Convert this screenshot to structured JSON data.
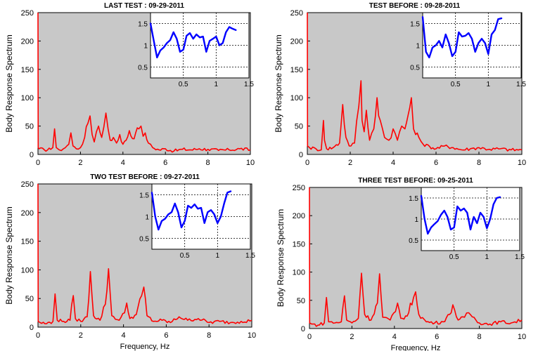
{
  "panels": [
    {
      "title": "LAST TEST : 09-29-2011",
      "ylabel": "Body Response Spectrum",
      "xlabel": "",
      "xlim": [
        0,
        10
      ],
      "ylim": [
        0,
        250
      ],
      "xticks": [
        "0",
        "2",
        "4",
        "6",
        "8",
        "10"
      ],
      "yticks": [
        "0",
        "50",
        "100",
        "150",
        "200",
        "250"
      ],
      "inset": {
        "xticks": [
          "0.5",
          "1",
          "1.5"
        ],
        "yticks": [
          "0.5",
          "1",
          "1.5"
        ],
        "xlim": [
          0,
          1.5
        ],
        "ylim": [
          0.25,
          1.75
        ]
      }
    },
    {
      "title": "TEST BEFORE : 09-28-2011",
      "ylabel": "Body Response Spectrum",
      "xlabel": "",
      "xlim": [
        0,
        10
      ],
      "ylim": [
        0,
        250
      ],
      "xticks": [
        "0",
        "2",
        "4",
        "6",
        "8",
        "10"
      ],
      "yticks": [
        "0",
        "50",
        "100",
        "150",
        "200",
        "250"
      ],
      "inset": {
        "xticks": [
          "0.5",
          "1",
          "1.5"
        ],
        "yticks": [
          "0.5",
          "1",
          "1.5"
        ],
        "xlim": [
          0,
          1.5
        ],
        "ylim": [
          0.25,
          1.75
        ]
      }
    },
    {
      "title": "TWO TEST BEFORE : 09-27-2011",
      "ylabel": "Body Response Spectrum",
      "xlabel": "Frequency, Hz",
      "xlim": [
        0,
        10
      ],
      "ylim": [
        0,
        250
      ],
      "xticks": [
        "0",
        "2",
        "4",
        "6",
        "8",
        "10"
      ],
      "yticks": [
        "0",
        "50",
        "100",
        "150",
        "200",
        "250"
      ],
      "inset": {
        "xticks": [
          "0.5",
          "1",
          "1.5"
        ],
        "yticks": [
          "0.5",
          "1",
          "1.5"
        ],
        "xlim": [
          0,
          1.5
        ],
        "ylim": [
          0.25,
          1.75
        ]
      }
    },
    {
      "title": "THREE TEST BEFORE:   09-25-2011",
      "ylabel": "Body Response Spectrum",
      "xlabel": "Frequency, Hz",
      "xlim": [
        0,
        10
      ],
      "ylim": [
        0,
        250
      ],
      "xticks": [
        "0",
        "2",
        "4",
        "6",
        "8",
        "10"
      ],
      "yticks": [
        "0",
        "50",
        "100",
        "150",
        "200",
        "250"
      ],
      "inset": {
        "xticks": [
          "0.5",
          "1",
          "1.5"
        ],
        "yticks": [
          "0.5",
          "1",
          "1.5"
        ],
        "xlim": [
          0,
          1.5
        ],
        "ylim": [
          0.25,
          1.75
        ]
      }
    }
  ],
  "colors": {
    "spectrum": "#ff0000",
    "inset_line": "#0000ff",
    "axes_bg": "#c8c8c8",
    "inset_bg": "#ffffff"
  },
  "chart_data": [
    {
      "type": "line",
      "title": "LAST TEST : 09-29-2011",
      "ylabel": "Body Response Spectrum",
      "xlim": [
        0,
        10
      ],
      "ylim": [
        0,
        250
      ],
      "series": [
        {
          "x": [
            0,
            0.01,
            0.05,
            0.3,
            0.6,
            0.7,
            0.78,
            0.86,
            1.0,
            1.2,
            1.45,
            1.55,
            1.65,
            1.8,
            2.0,
            2.2,
            2.35,
            2.45,
            2.55,
            2.65,
            2.75,
            2.85,
            3.0,
            3.1,
            3.2,
            3.3,
            3.4,
            3.55,
            3.7,
            3.85,
            4.0,
            4.15,
            4.3,
            4.45,
            4.6,
            4.75,
            4.85,
            4.95,
            5.05,
            5.2,
            5.4,
            5.7,
            6.0,
            6.4,
            6.8,
            7.2,
            7.6,
            8.0,
            8.5,
            9.0,
            9.5,
            10.0
          ],
          "y": [
            250,
            12,
            10,
            8,
            9,
            12,
            45,
            12,
            8,
            10,
            18,
            38,
            15,
            10,
            12,
            30,
            55,
            68,
            35,
            22,
            40,
            50,
            30,
            48,
            73,
            45,
            25,
            30,
            20,
            35,
            18,
            25,
            42,
            28,
            38,
            45,
            50,
            32,
            38,
            20,
            12,
            8,
            10,
            6,
            9,
            8,
            10,
            9,
            7,
            8,
            10,
            8
          ]
        }
      ],
      "inset": {
        "xlim": [
          0,
          1.5
        ],
        "ylim": [
          0.25,
          1.75
        ],
        "x": [
          0,
          0.05,
          0.1,
          0.15,
          0.2,
          0.25,
          0.3,
          0.35,
          0.4,
          0.45,
          0.5,
          0.55,
          0.6,
          0.65,
          0.7,
          0.75,
          0.8,
          0.85,
          0.9,
          0.95,
          1.0,
          1.05,
          1.1,
          1.15,
          1.2,
          1.25,
          1.3
        ],
        "y": [
          1.5,
          1.1,
          0.72,
          0.88,
          0.95,
          1.05,
          1.12,
          1.3,
          1.15,
          0.85,
          0.9,
          1.22,
          1.28,
          1.15,
          1.25,
          1.18,
          1.2,
          0.85,
          1.1,
          1.15,
          1.2,
          1.0,
          1.05,
          1.3,
          1.42,
          1.38,
          1.35
        ]
      }
    },
    {
      "type": "line",
      "title": "TEST BEFORE : 09-28-2011",
      "ylabel": "Body Response Spectrum",
      "xlim": [
        0,
        10
      ],
      "ylim": [
        0,
        250
      ],
      "series": [
        {
          "x": [
            0,
            0.01,
            0.1,
            0.4,
            0.65,
            0.75,
            0.8,
            0.9,
            1.2,
            1.5,
            1.65,
            1.8,
            1.95,
            2.2,
            2.4,
            2.5,
            2.55,
            2.65,
            2.75,
            2.9,
            3.1,
            3.25,
            3.4,
            3.6,
            3.8,
            4.0,
            4.2,
            4.4,
            4.55,
            4.7,
            4.85,
            4.95,
            5.05,
            5.2,
            5.4,
            5.7,
            6.0,
            6.4,
            6.8,
            7.2,
            7.6,
            8.0,
            8.5,
            9.0,
            9.5,
            10.0
          ],
          "y": [
            250,
            15,
            12,
            10,
            8,
            60,
            25,
            10,
            12,
            20,
            88,
            30,
            15,
            20,
            85,
            130,
            60,
            40,
            78,
            25,
            45,
            100,
            60,
            30,
            25,
            45,
            25,
            50,
            45,
            70,
            100,
            45,
            35,
            30,
            18,
            14,
            10,
            15,
            12,
            8,
            10,
            12,
            9,
            10,
            8,
            8
          ]
        }
      ],
      "inset": {
        "xlim": [
          0,
          1.5
        ],
        "ylim": [
          0.25,
          1.75
        ],
        "x": [
          0,
          0.05,
          0.1,
          0.15,
          0.2,
          0.25,
          0.3,
          0.35,
          0.4,
          0.45,
          0.5,
          0.55,
          0.6,
          0.65,
          0.7,
          0.75,
          0.8,
          0.85,
          0.9,
          0.95,
          1.0,
          1.05,
          1.1,
          1.15,
          1.2
        ],
        "y": [
          1.65,
          0.85,
          0.72,
          0.95,
          1.0,
          1.1,
          0.95,
          1.25,
          1.05,
          0.75,
          0.85,
          1.3,
          1.2,
          1.22,
          1.28,
          1.15,
          0.85,
          1.05,
          1.15,
          1.05,
          0.8,
          1.25,
          1.35,
          1.6,
          1.62
        ]
      }
    },
    {
      "type": "line",
      "title": "TWO TEST BEFORE : 09-27-2011",
      "ylabel": "Body Response Spectrum",
      "xlabel": "Frequency, Hz",
      "xlim": [
        0,
        10
      ],
      "ylim": [
        0,
        250
      ],
      "series": [
        {
          "x": [
            0,
            0.01,
            0.1,
            0.4,
            0.7,
            0.8,
            0.9,
            1.2,
            1.5,
            1.65,
            1.75,
            2.0,
            2.3,
            2.45,
            2.6,
            2.9,
            3.15,
            3.3,
            3.45,
            3.8,
            4.05,
            4.15,
            4.3,
            4.6,
            4.85,
            4.95,
            5.1,
            5.4,
            5.8,
            6.2,
            6.6,
            7.0,
            7.5,
            8.0,
            8.5,
            9.0,
            9.5,
            10.0
          ],
          "y": [
            250,
            10,
            8,
            6,
            10,
            58,
            12,
            10,
            12,
            55,
            15,
            10,
            18,
            97,
            20,
            12,
            40,
            102,
            20,
            12,
            25,
            42,
            15,
            22,
            55,
            70,
            20,
            10,
            12,
            8,
            18,
            12,
            15,
            8,
            10,
            8,
            10,
            12
          ]
        }
      ],
      "inset": {
        "xlim": [
          0,
          1.5
        ],
        "ylim": [
          0.25,
          1.75
        ],
        "x": [
          0,
          0.05,
          0.1,
          0.15,
          0.2,
          0.25,
          0.3,
          0.35,
          0.4,
          0.45,
          0.5,
          0.55,
          0.6,
          0.65,
          0.7,
          0.75,
          0.8,
          0.85,
          0.9,
          0.95,
          1.0,
          1.05,
          1.1,
          1.15,
          1.2
        ],
        "y": [
          1.55,
          1.0,
          0.7,
          0.9,
          0.95,
          1.05,
          1.1,
          1.3,
          1.1,
          0.75,
          0.9,
          1.25,
          1.2,
          1.28,
          1.18,
          1.2,
          0.85,
          1.1,
          1.15,
          1.05,
          0.85,
          1.0,
          1.3,
          1.55,
          1.58
        ]
      }
    },
    {
      "type": "line",
      "title": "THREE TEST BEFORE:   09-25-2011",
      "ylabel": "Body Response Spectrum",
      "xlabel": "Frequency, Hz",
      "xlim": [
        0,
        10
      ],
      "ylim": [
        0,
        250
      ],
      "series": [
        {
          "x": [
            0,
            0.01,
            0.1,
            0.4,
            0.7,
            0.8,
            0.9,
            1.2,
            1.5,
            1.65,
            1.75,
            2.0,
            2.3,
            2.45,
            2.6,
            2.9,
            3.2,
            3.3,
            3.45,
            3.8,
            4.05,
            4.15,
            4.3,
            4.6,
            4.9,
            5.0,
            5.15,
            5.5,
            5.9,
            6.3,
            6.6,
            6.75,
            7.0,
            7.3,
            7.5,
            8.0,
            8.5,
            9.0,
            9.5,
            10.0
          ],
          "y": [
            250,
            10,
            8,
            6,
            10,
            55,
            12,
            10,
            12,
            58,
            15,
            10,
            18,
            98,
            25,
            15,
            45,
            97,
            20,
            15,
            30,
            45,
            18,
            22,
            55,
            65,
            25,
            12,
            10,
            12,
            25,
            42,
            15,
            20,
            28,
            10,
            8,
            12,
            10,
            15
          ]
        }
      ],
      "inset": {
        "xlim": [
          0,
          1.5
        ],
        "ylim": [
          0.25,
          1.75
        ],
        "x": [
          0,
          0.05,
          0.1,
          0.15,
          0.2,
          0.25,
          0.3,
          0.35,
          0.4,
          0.45,
          0.5,
          0.55,
          0.6,
          0.65,
          0.7,
          0.75,
          0.8,
          0.85,
          0.9,
          0.95,
          1.0,
          1.05,
          1.1,
          1.15,
          1.2
        ],
        "y": [
          1.55,
          1.0,
          0.65,
          0.8,
          0.88,
          0.95,
          1.1,
          1.2,
          1.05,
          0.75,
          0.8,
          1.3,
          1.2,
          1.25,
          1.15,
          0.75,
          1.05,
          0.9,
          1.15,
          1.05,
          0.78,
          1.0,
          1.35,
          1.5,
          1.52
        ]
      }
    }
  ]
}
